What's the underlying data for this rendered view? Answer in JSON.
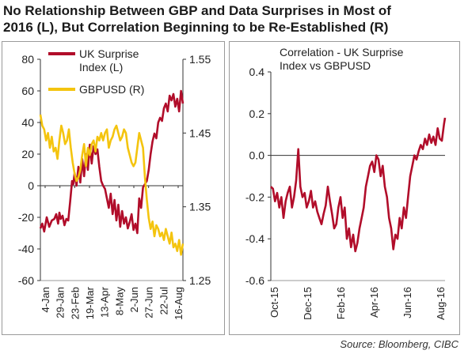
{
  "title_line1": "No Relationship Between GBP and Data Surprises in Most of",
  "title_line2": "2016 (L), But Correlation Beginning to be Re-Established (R)",
  "source": "Source: Bloomberg, CIBC",
  "colors": {
    "uk_surprise": "#b10d2a",
    "gbpusd": "#f4c40f",
    "correlation": "#b10d2a",
    "axis": "#333333"
  },
  "chart_data": [
    {
      "type": "line",
      "title": "",
      "legend_placement": "top-center",
      "x_tick_labels": [
        "4-Jan",
        "29-Jan",
        "23-Feb",
        "19-Mar",
        "13-Apr",
        "8-May",
        "2-Jun",
        "27-Jun",
        "22-Jul",
        "16-Aug"
      ],
      "y_left": {
        "ticks": [
          -60,
          -40,
          -20,
          0,
          20,
          40,
          60,
          80
        ],
        "range": [
          -60,
          80
        ]
      },
      "y_right": {
        "ticks": [
          1.25,
          1.35,
          1.45,
          1.55
        ],
        "range": [
          1.25,
          1.55
        ]
      },
      "x_range": [
        0,
        225
      ],
      "series": [
        {
          "name": "UK Surprise Index (L)",
          "axis": "left",
          "x": [
            0,
            3,
            6,
            10,
            14,
            18,
            22,
            25,
            28,
            30,
            32,
            35,
            38,
            41,
            44,
            47,
            50,
            52,
            54,
            57,
            60,
            63,
            66,
            69,
            72,
            75,
            78,
            81,
            84,
            87,
            90,
            93,
            96,
            99,
            102,
            105,
            108,
            111,
            114,
            117,
            120,
            123,
            126,
            129,
            132,
            135,
            138,
            141,
            144,
            147,
            150,
            153,
            156,
            159,
            162,
            165,
            168,
            171,
            174,
            177,
            180,
            183,
            186,
            189,
            192,
            195,
            198,
            201,
            204,
            207,
            210,
            213,
            216,
            219,
            222,
            225
          ],
          "values": [
            -27,
            -24,
            -29,
            -20,
            -26,
            -22,
            -21,
            -18,
            -24,
            -17,
            -21,
            -19,
            -25,
            -21,
            -22,
            -10,
            3,
            1,
            8,
            0,
            12,
            2,
            17,
            6,
            20,
            10,
            26,
            14,
            25,
            20,
            23,
            12,
            3,
            0,
            -2,
            -8,
            -14,
            -5,
            -18,
            -9,
            -22,
            -12,
            -26,
            -16,
            -24,
            -20,
            -27,
            -23,
            -18,
            -28,
            -24,
            -30,
            -8,
            -14,
            -1,
            1,
            3,
            10,
            20,
            28,
            33,
            30,
            40,
            43,
            41,
            49,
            52,
            47,
            57,
            54,
            58,
            50,
            55,
            47,
            60,
            52
          ]
        },
        {
          "name": "GBPUSD (R)",
          "axis": "right",
          "x": [
            0,
            3,
            6,
            9,
            12,
            15,
            18,
            21,
            24,
            27,
            30,
            33,
            36,
            39,
            42,
            45,
            48,
            51,
            54,
            57,
            60,
            63,
            66,
            69,
            72,
            75,
            78,
            81,
            84,
            87,
            90,
            93,
            96,
            99,
            102,
            105,
            108,
            111,
            114,
            117,
            120,
            123,
            126,
            129,
            132,
            135,
            138,
            141,
            144,
            147,
            150,
            153,
            156,
            159,
            162,
            165,
            168,
            171,
            174,
            177,
            180,
            183,
            186,
            189,
            192,
            195,
            198,
            201,
            204,
            207,
            210,
            213,
            216,
            219,
            222,
            225
          ],
          "values": [
            1.475,
            1.46,
            1.455,
            1.44,
            1.45,
            1.43,
            1.445,
            1.425,
            1.43,
            1.415,
            1.44,
            1.46,
            1.45,
            1.435,
            1.44,
            1.455,
            1.43,
            1.41,
            1.395,
            1.385,
            1.39,
            1.4,
            1.42,
            1.435,
            1.405,
            1.43,
            1.42,
            1.435,
            1.44,
            1.425,
            1.445,
            1.44,
            1.45,
            1.44,
            1.45,
            1.455,
            1.43,
            1.44,
            1.445,
            1.455,
            1.46,
            1.45,
            1.44,
            1.445,
            1.455,
            1.45,
            1.43,
            1.42,
            1.41,
            1.405,
            1.41,
            1.43,
            1.45,
            1.44,
            1.43,
            1.39,
            1.36,
            1.335,
            1.32,
            1.33,
            1.31,
            1.325,
            1.32,
            1.31,
            1.315,
            1.305,
            1.32,
            1.31,
            1.3,
            1.315,
            1.295,
            1.3,
            1.29,
            1.305,
            1.285,
            1.3
          ]
        }
      ]
    },
    {
      "type": "line",
      "title": "Correlation - UK Surprise Index vs GBPUSD",
      "x_tick_labels": [
        "Oct-15",
        "Dec-15",
        "Feb-16",
        "Apr-16",
        "Jun-16",
        "Aug-16"
      ],
      "y": {
        "ticks": [
          -0.6,
          -0.4,
          -0.2,
          0.0,
          0.2,
          0.4
        ],
        "range": [
          -0.6,
          0.4
        ]
      },
      "x_range": [
        0,
        330
      ],
      "series": [
        {
          "name": "Correlation - UK Surprise Index vs GBPUSD",
          "x": [
            0,
            4,
            8,
            12,
            16,
            20,
            24,
            28,
            32,
            36,
            40,
            44,
            48,
            52,
            56,
            60,
            64,
            68,
            72,
            76,
            80,
            84,
            88,
            92,
            96,
            100,
            104,
            108,
            112,
            116,
            120,
            124,
            128,
            132,
            136,
            140,
            144,
            148,
            152,
            156,
            160,
            164,
            168,
            172,
            176,
            180,
            184,
            188,
            192,
            196,
            200,
            204,
            208,
            212,
            216,
            220,
            224,
            228,
            232,
            236,
            240,
            244,
            248,
            252,
            256,
            260,
            264,
            268,
            272,
            276,
            280,
            284,
            288,
            292,
            296,
            300,
            304,
            308,
            312,
            316,
            320,
            324,
            328,
            330
          ],
          "values": [
            -0.15,
            -0.16,
            -0.22,
            -0.18,
            -0.25,
            -0.2,
            -0.3,
            -0.22,
            -0.18,
            -0.15,
            -0.25,
            -0.2,
            -0.12,
            0.03,
            -0.15,
            -0.2,
            -0.18,
            -0.25,
            -0.22,
            -0.17,
            -0.25,
            -0.22,
            -0.27,
            -0.3,
            -0.33,
            -0.28,
            -0.24,
            -0.15,
            -0.22,
            -0.28,
            -0.35,
            -0.33,
            -0.25,
            -0.2,
            -0.3,
            -0.25,
            -0.4,
            -0.35,
            -0.44,
            -0.38,
            -0.46,
            -0.42,
            -0.35,
            -0.3,
            -0.25,
            -0.15,
            -0.1,
            -0.05,
            -0.03,
            -0.08,
            0.0,
            -0.02,
            -0.1,
            -0.05,
            -0.15,
            -0.2,
            -0.3,
            -0.35,
            -0.45,
            -0.38,
            -0.4,
            -0.3,
            -0.35,
            -0.25,
            -0.3,
            -0.2,
            -0.1,
            -0.05,
            0.0,
            -0.02,
            0.02,
            0.05,
            0.03,
            0.08,
            0.05,
            0.1,
            0.06,
            0.09,
            0.05,
            0.13,
            0.08,
            0.07,
            0.15,
            0.18
          ]
        }
      ]
    }
  ]
}
